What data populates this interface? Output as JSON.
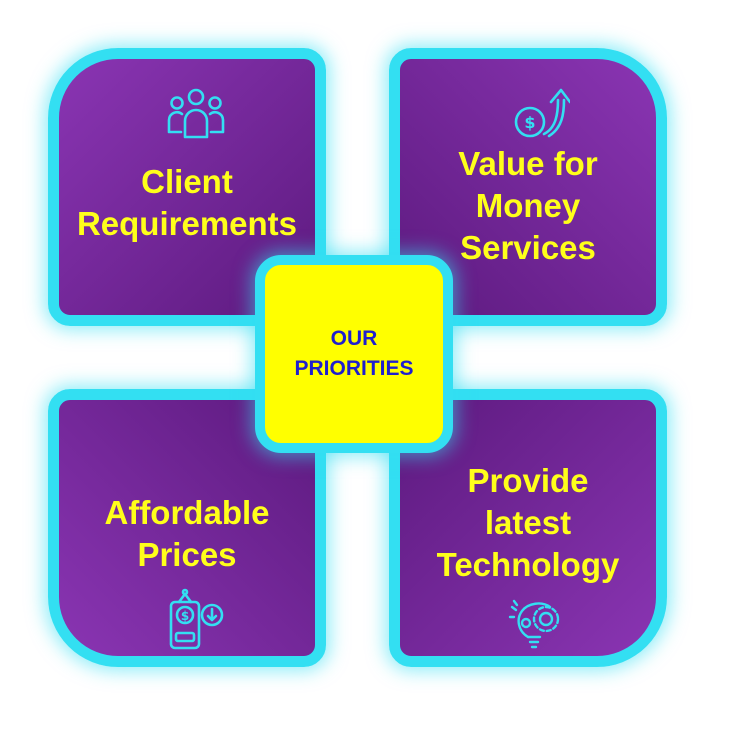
{
  "center": {
    "line1": "OUR",
    "line2": "PRIORITIES"
  },
  "cards": [
    {
      "lines": [
        "Client",
        "Requirements"
      ],
      "icon": "people-group-icon"
    },
    {
      "lines": [
        "Value for",
        "Money",
        "Services"
      ],
      "icon": "dollar-growth-icon"
    },
    {
      "lines": [
        "Affordable",
        "Prices"
      ],
      "icon": "price-tag-icon"
    },
    {
      "lines": [
        "Provide",
        "latest",
        "Technology"
      ],
      "icon": "lightbulb-gear-icon"
    }
  ],
  "colors": {
    "card": "#6d2494",
    "border": "#33dff2",
    "text": "#ffff1a",
    "center": "#ffff00",
    "center_text": "#1f1fcf"
  }
}
